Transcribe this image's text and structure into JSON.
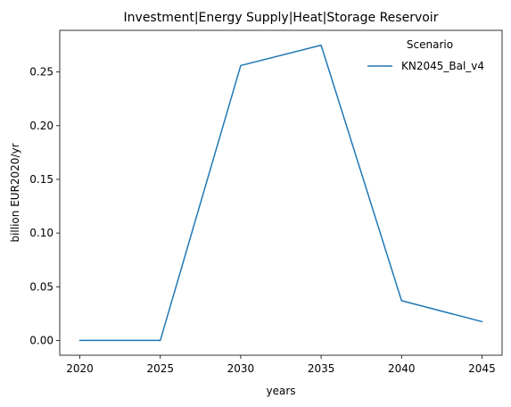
{
  "chart_data": {
    "type": "line",
    "title": "Investment|Energy Supply|Heat|Storage Reservoir",
    "xlabel": "years",
    "ylabel": "billion EUR2020/yr",
    "x": [
      2020,
      2025,
      2030,
      2035,
      2040,
      2045
    ],
    "x_ticks": [
      "2020",
      "2025",
      "2030",
      "2035",
      "2040",
      "2045"
    ],
    "y_ticks": [
      "0.00",
      "0.05",
      "0.10",
      "0.15",
      "0.20",
      "0.25"
    ],
    "xlim": [
      2018.75,
      2046.25
    ],
    "ylim": [
      -0.0138,
      0.2888
    ],
    "grid": false,
    "legend": {
      "title": "Scenario",
      "placement": "top-right"
    },
    "series": [
      {
        "name": "KN2045_Bal_v4",
        "color": "#1f77b4",
        "values": [
          0.0,
          0.0,
          0.256,
          0.275,
          0.037,
          0.0175
        ]
      }
    ]
  }
}
